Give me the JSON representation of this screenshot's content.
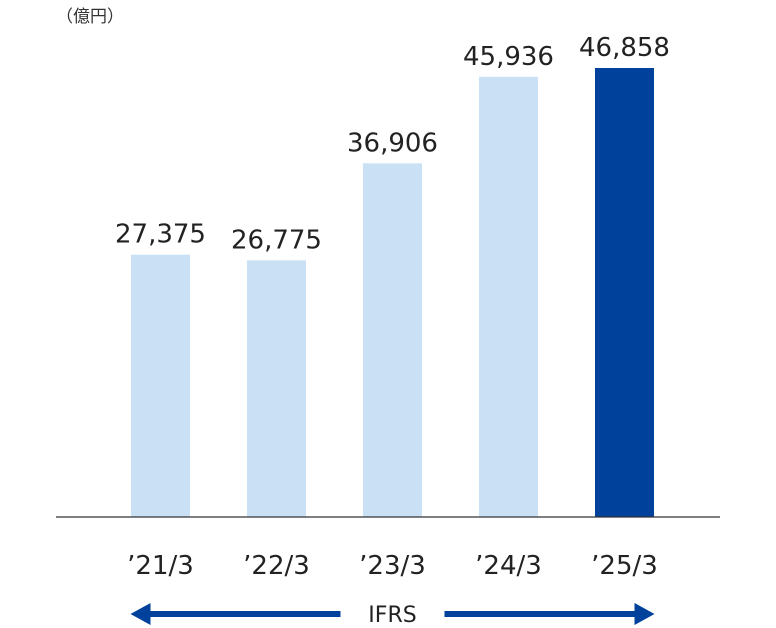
{
  "chart_data": {
    "type": "bar",
    "unit_label": "（億円）",
    "categories": [
      "’21/3",
      "’22/3",
      "’23/3",
      "’24/3",
      "’25/3"
    ],
    "values": [
      27375,
      26775,
      36906,
      45936,
      46858
    ],
    "value_labels": [
      "27,375",
      "26,775",
      "36,906",
      "45,936",
      "46,858"
    ],
    "ylim": [
      0,
      46858
    ],
    "highlight_index": 4,
    "grid": false,
    "annotation": {
      "text": "IFRS",
      "range": [
        "’21/3",
        "’25/3"
      ],
      "direction": "both"
    },
    "colors": {
      "bar": "#c9e0f5",
      "highlight": "#00419b",
      "arrow": "#00419b",
      "axis": "#333333"
    }
  }
}
